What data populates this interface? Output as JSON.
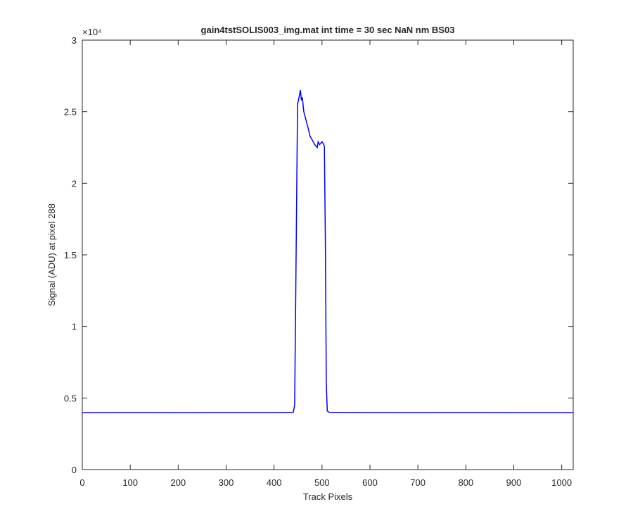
{
  "chart_data": {
    "type": "line",
    "title": "gain4tstSOLIS003_img.mat int time = 30 sec  NaN nm BS03",
    "x_label": "Track Pixels",
    "y_label": "Signal (ADU) at pixel 288",
    "y_exponent": "×10⁴",
    "color": "#0000ff",
    "x": [
      0,
      100,
      200,
      300,
      400,
      440,
      443,
      446,
      449,
      452,
      455,
      457,
      459,
      462,
      466,
      470,
      475,
      480,
      485,
      490,
      492,
      495,
      500,
      504,
      505,
      507,
      509,
      511,
      515,
      600,
      700,
      800,
      900,
      1024
    ],
    "values": [
      0.397,
      0.398,
      0.397,
      0.398,
      0.398,
      0.4,
      0.45,
      1.5,
      2.55,
      2.6,
      2.65,
      2.58,
      2.6,
      2.5,
      2.45,
      2.4,
      2.33,
      2.3,
      2.27,
      2.25,
      2.29,
      2.27,
      2.29,
      2.27,
      2.25,
      1.6,
      0.6,
      0.41,
      0.4,
      0.398,
      0.397,
      0.398,
      0.397,
      0.397
    ],
    "xlim": [
      0,
      1024
    ],
    "xticks": [
      0,
      100,
      200,
      300,
      400,
      500,
      600,
      700,
      800,
      900,
      1000
    ],
    "ylim": [
      0,
      3
    ],
    "yticks": [
      0,
      0.5,
      1,
      1.5,
      2,
      2.5,
      3
    ]
  }
}
